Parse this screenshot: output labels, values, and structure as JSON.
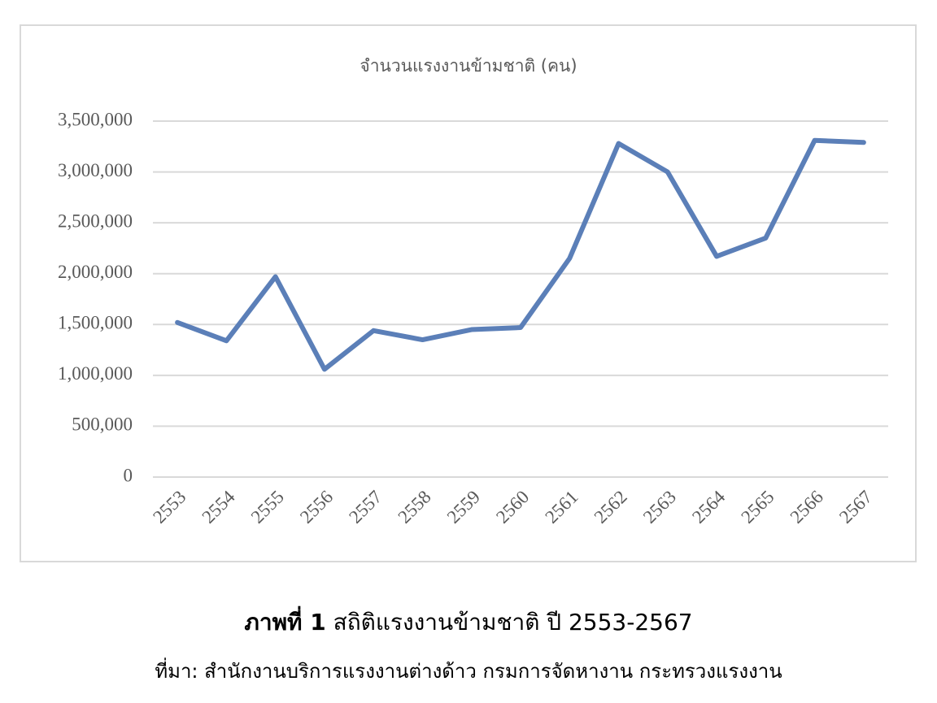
{
  "chart_data": {
    "type": "line",
    "title": "จำนวนแรงงานข้ามชาติ (คน)",
    "categories": [
      "2553",
      "2554",
      "2555",
      "2556",
      "2557",
      "2558",
      "2559",
      "2560",
      "2561",
      "2562",
      "2563",
      "2564",
      "2565",
      "2566",
      "2567"
    ],
    "values": [
      1520000,
      1340000,
      1970000,
      1060000,
      1440000,
      1350000,
      1450000,
      1470000,
      2150000,
      3280000,
      3000000,
      2170000,
      2350000,
      3310000,
      3290000
    ],
    "color": "#5b7fb8",
    "ylim": [
      0,
      3500000
    ],
    "yticks": [
      0,
      {
        "value": 500000,
        "label": "500,000"
      },
      {
        "value": 1000000,
        "label": "1,000,000"
      },
      {
        "value": 1500000,
        "label": "1,500,000"
      },
      {
        "value": 2000000,
        "label": "2,000,000"
      },
      {
        "value": 2500000,
        "label": "2,500,000"
      },
      {
        "value": 3000000,
        "label": "3,000,000"
      },
      {
        "value": 3500000,
        "label": "3,500,000"
      }
    ],
    "grid": true
  },
  "caption": {
    "label": "ภาพที่ 1",
    "text": "สถิติแรงงานข้ามชาติ ปี 2553-2567",
    "source": "ที่มา: สำนักงานบริการแรงงานต่างด้าว กรมการจัดหางาน กระทรวงแรงงาน"
  }
}
